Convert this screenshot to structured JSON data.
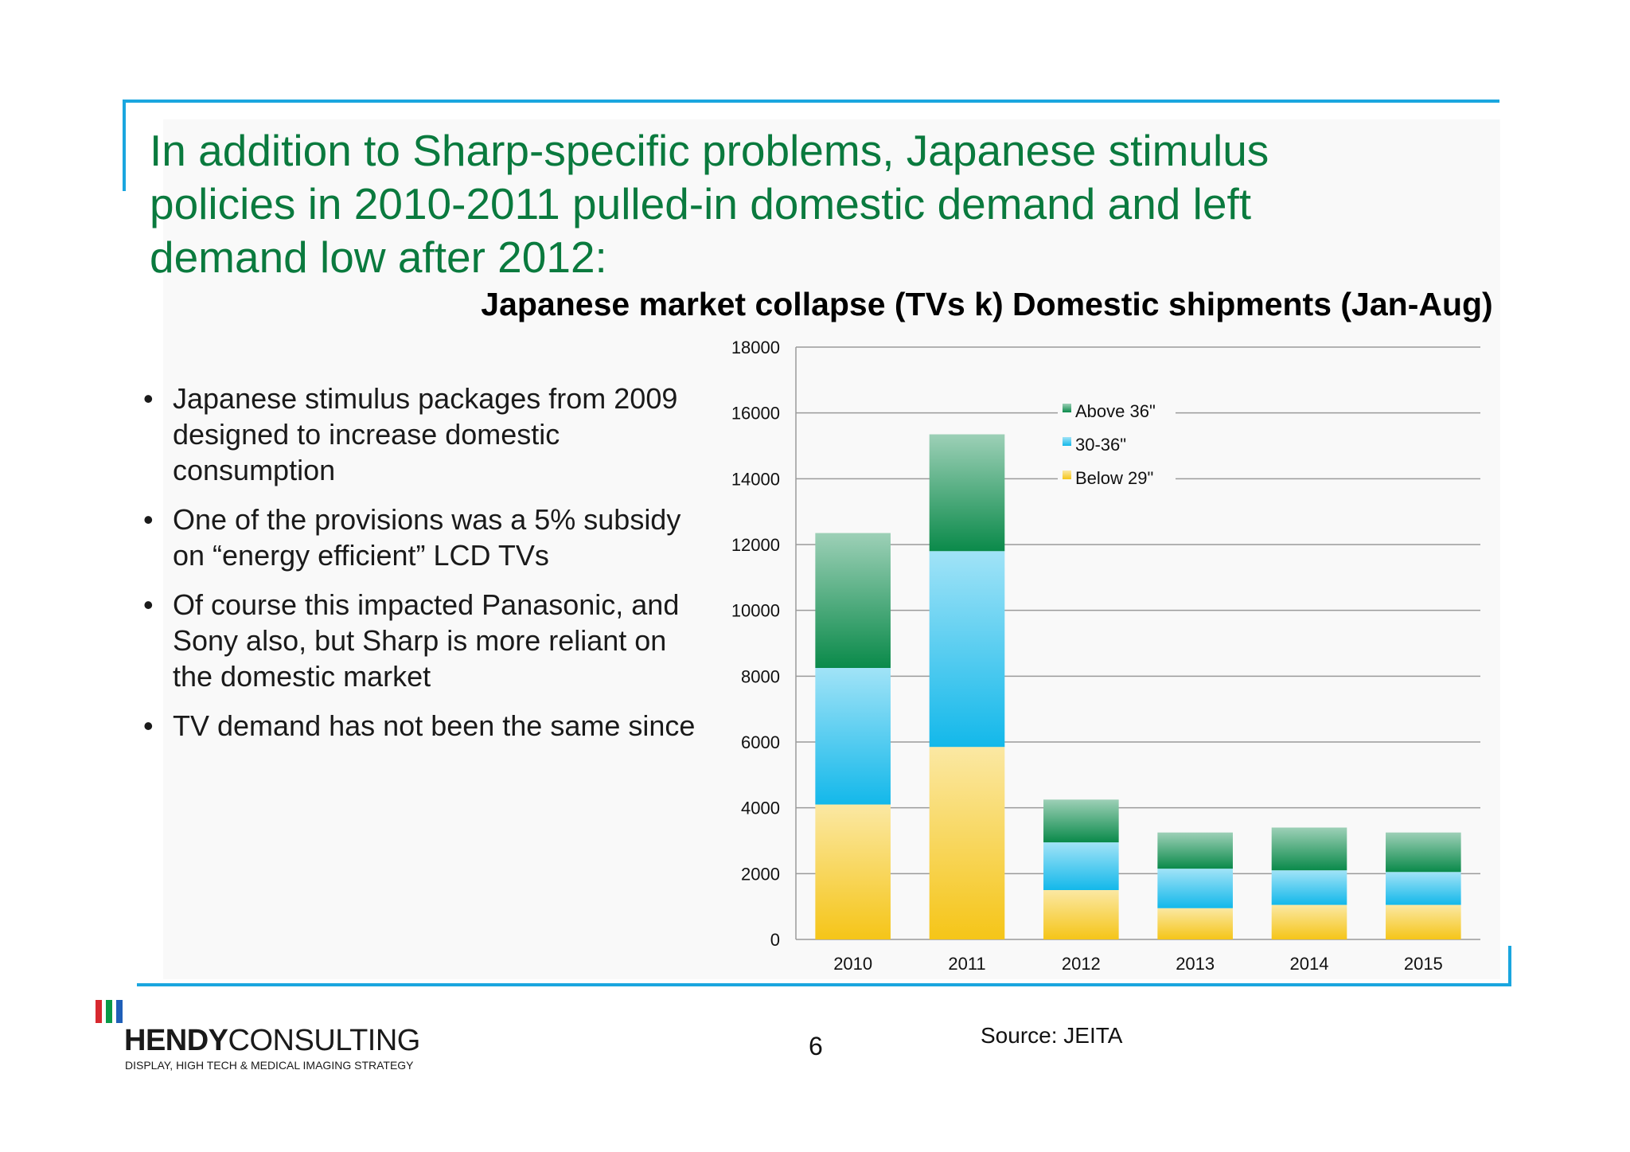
{
  "slide": {
    "headline": "In addition to Sharp-specific problems, Japanese stimulus policies in 2010-2011 pulled-in domestic demand and left demand low after 2012:",
    "bullets": [
      "Japanese stimulus packages from 2009 designed to increase domestic consumption",
      "One of the provisions was a 5% subsidy on “energy efficient” LCD TVs",
      "Of course this impacted Panasonic, and Sony also, but Sharp is more reliant on the domestic market",
      "TV demand has not been the same since"
    ],
    "bullet_char": "•",
    "page_number": "6",
    "source": "Source: JEITA",
    "logo": {
      "name_bold": "HENDY",
      "name_light": "CONSULTING",
      "tagline": "DISPLAY, HIGH TECH & MEDICAL IMAGING STRATEGY",
      "bar_colors": [
        "#d7282f",
        "#0a9a48",
        "#1f5fb8"
      ]
    },
    "accent_color": "#1aa6df",
    "headline_color": "#0a7a3e"
  },
  "chart_data": {
    "type": "bar",
    "stacked": true,
    "title": "Japanese market collapse (TVs k) Domestic shipments (Jan-Aug)",
    "xlabel": "",
    "ylabel": "",
    "categories": [
      "2010",
      "2011",
      "2012",
      "2013",
      "2014",
      "2015"
    ],
    "series": [
      {
        "name": "Below 29\"",
        "color": "#f5c518",
        "values": [
          4100,
          5850,
          1500,
          950,
          1050,
          1050
        ]
      },
      {
        "name": "30-36\"",
        "color": "#13b8ea",
        "values": [
          4150,
          5950,
          1450,
          1200,
          1050,
          1000
        ]
      },
      {
        "name": "Above 36\"",
        "color": "#0a8a4a",
        "values": [
          4100,
          3550,
          1300,
          1100,
          1300,
          1200
        ]
      }
    ],
    "ylim": [
      0,
      18000
    ],
    "yticks": [
      0,
      2000,
      4000,
      6000,
      8000,
      10000,
      12000,
      14000,
      16000,
      18000
    ],
    "grid": true,
    "legend_position": "top-center",
    "legend_order": [
      "Above 36\"",
      "30-36\"",
      "Below 29\""
    ]
  }
}
